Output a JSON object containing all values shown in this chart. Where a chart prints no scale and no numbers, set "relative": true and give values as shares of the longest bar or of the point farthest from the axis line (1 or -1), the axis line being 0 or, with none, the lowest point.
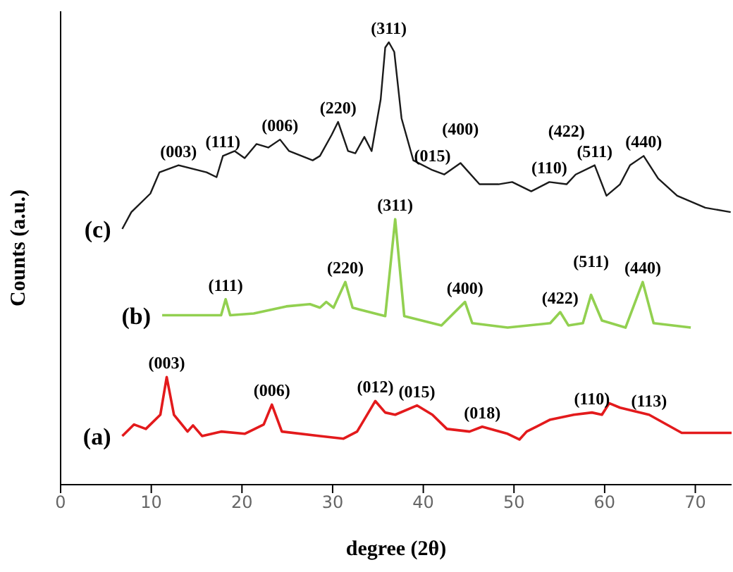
{
  "chart_data": {
    "type": "line",
    "relative": true,
    "xlabel": "degree (2θ)",
    "ylabel": "Counts (a.u.)",
    "xlim": [
      0,
      74
    ],
    "xticks": [
      0,
      10,
      20,
      30,
      40,
      50,
      60,
      70
    ],
    "marker": "none",
    "line_style": "solid",
    "series": [
      {
        "name": "(c)",
        "color": "#1a1a1a",
        "x": [
          6.8,
          7.8,
          9.9,
          10.9,
          13.0,
          16.1,
          17.2,
          17.9,
          19.2,
          20.3,
          21.6,
          22.9,
          24.2,
          25.2,
          27.8,
          28.6,
          29.9,
          30.6,
          31.7,
          32.5,
          33.5,
          34.3,
          35.3,
          35.8,
          36.2,
          36.8,
          37.6,
          38.9,
          41.0,
          42.3,
          44.1,
          46.2,
          48.3,
          49.8,
          51.9,
          53.9,
          55.8,
          56.8,
          58.9,
          60.2,
          61.7,
          62.8,
          64.3,
          65.9,
          68.0,
          71.1,
          73.9
        ],
        "values": [
          0.578,
          0.616,
          0.658,
          0.706,
          0.722,
          0.706,
          0.695,
          0.743,
          0.754,
          0.738,
          0.77,
          0.762,
          0.78,
          0.754,
          0.733,
          0.743,
          0.791,
          0.82,
          0.754,
          0.749,
          0.786,
          0.754,
          0.871,
          0.988,
          1.0,
          0.978,
          0.828,
          0.733,
          0.711,
          0.701,
          0.727,
          0.679,
          0.679,
          0.684,
          0.663,
          0.684,
          0.679,
          0.701,
          0.722,
          0.653,
          0.679,
          0.722,
          0.743,
          0.692,
          0.653,
          0.626,
          0.616
        ]
      },
      {
        "name": "(b)",
        "color": "#92d050",
        "x": [
          11.2,
          16.1,
          17.7,
          18.2,
          18.7,
          21.3,
          24.9,
          27.5,
          28.6,
          29.3,
          30.1,
          31.4,
          32.2,
          35.8,
          36.9,
          37.9,
          42.0,
          44.6,
          45.4,
          49.3,
          54.0,
          55.1,
          56.0,
          57.6,
          58.5,
          59.7,
          62.3,
          64.2,
          65.4,
          69.5
        ],
        "values": [
          0.383,
          0.383,
          0.383,
          0.419,
          0.383,
          0.387,
          0.403,
          0.408,
          0.4,
          0.413,
          0.4,
          0.458,
          0.4,
          0.381,
          0.6,
          0.381,
          0.36,
          0.413,
          0.365,
          0.355,
          0.365,
          0.39,
          0.36,
          0.365,
          0.429,
          0.371,
          0.355,
          0.458,
          0.365,
          0.355
        ]
      },
      {
        "name": "(a)",
        "color": "#e31a1c",
        "x": [
          6.8,
          8.1,
          9.4,
          11.0,
          11.7,
          12.5,
          14.0,
          14.6,
          15.6,
          17.7,
          20.3,
          22.4,
          23.3,
          24.4,
          28.6,
          31.2,
          32.7,
          34.7,
          35.8,
          36.9,
          39.3,
          41.0,
          42.6,
          45.1,
          46.5,
          49.3,
          50.6,
          51.4,
          54.0,
          56.6,
          58.6,
          59.7,
          60.5,
          61.7,
          64.9,
          68.5,
          74.0
        ],
        "values": [
          0.11,
          0.136,
          0.126,
          0.158,
          0.243,
          0.158,
          0.12,
          0.134,
          0.11,
          0.12,
          0.115,
          0.136,
          0.181,
          0.12,
          0.11,
          0.104,
          0.12,
          0.189,
          0.163,
          0.158,
          0.179,
          0.158,
          0.126,
          0.12,
          0.131,
          0.115,
          0.102,
          0.12,
          0.147,
          0.158,
          0.163,
          0.158,
          0.184,
          0.174,
          0.158,
          0.117,
          0.117
        ]
      }
    ],
    "annotations": [
      {
        "text": "(003)",
        "x": 13.0,
        "y": 0.722
      },
      {
        "text": "(111)",
        "x": 17.9,
        "y": 0.743
      },
      {
        "text": "(006)",
        "x": 24.2,
        "y": 0.78
      },
      {
        "text": "(220)",
        "x": 30.6,
        "y": 0.82
      },
      {
        "text": "(311)",
        "x": 36.2,
        "y": 1.0
      },
      {
        "text": "(015)",
        "x": 41.0,
        "y": 0.711
      },
      {
        "text": "(400)",
        "x": 44.1,
        "y": 0.727
      },
      {
        "text": "(110)",
        "x": 53.9,
        "y": 0.684
      },
      {
        "text": "(422)",
        "x": 55.8,
        "y": 0.679
      },
      {
        "text": "(511)",
        "x": 58.9,
        "y": 0.722
      },
      {
        "text": "(440)",
        "x": 64.3,
        "y": 0.743
      },
      {
        "text": "(311)",
        "x": 36.9,
        "y": 0.6
      },
      {
        "text": "(220)",
        "x": 31.4,
        "y": 0.458
      },
      {
        "text": "(111)",
        "x": 18.2,
        "y": 0.419
      },
      {
        "text": "(400)",
        "x": 44.6,
        "y": 0.413
      },
      {
        "text": "(422)",
        "x": 55.1,
        "y": 0.39
      },
      {
        "text": "(511)",
        "x": 58.5,
        "y": 0.429
      },
      {
        "text": "(440)",
        "x": 64.2,
        "y": 0.458
      },
      {
        "text": "(003)",
        "x": 11.7,
        "y": 0.243
      },
      {
        "text": "(006)",
        "x": 23.3,
        "y": 0.181
      },
      {
        "text": "(012)",
        "x": 34.7,
        "y": 0.189
      },
      {
        "text": "(015)",
        "x": 39.3,
        "y": 0.179
      },
      {
        "text": "(018)",
        "x": 46.5,
        "y": 0.131
      },
      {
        "text": "(110)",
        "x": 58.6,
        "y": 0.163
      },
      {
        "text": "(113)",
        "x": 64.9,
        "y": 0.158
      }
    ]
  }
}
